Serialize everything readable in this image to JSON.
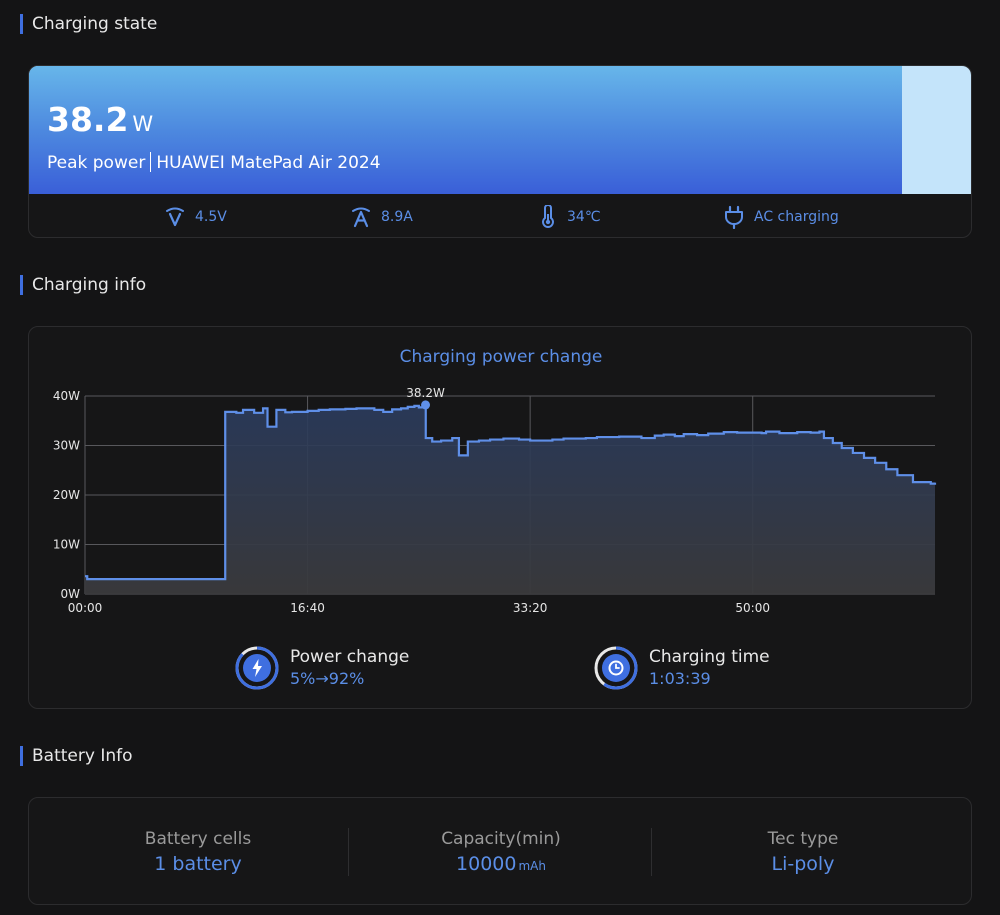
{
  "sections": {
    "charging_state": "Charging state",
    "charging_info": "Charging info",
    "battery_info": "Battery Info"
  },
  "peak": {
    "value": "38.2",
    "unit": "W",
    "label": "Peak power",
    "device": "HUAWEI MatePad Air 2024",
    "banner_fill_fraction": 0.925
  },
  "stats": {
    "voltage": "4.5V",
    "current": "8.9A",
    "temperature": "34℃",
    "mode": "AC charging"
  },
  "colors": {
    "accent": "#5b8ee6",
    "line": "#5f8fe8",
    "banner_light": "#c4e4fa"
  },
  "chart_data": {
    "type": "line",
    "title": "Charging power change",
    "x_tick_labels": [
      "00:00",
      "16:40",
      "33:20",
      "50:00"
    ],
    "x_ticks_seconds": [
      0,
      1000,
      2000,
      3000
    ],
    "y_tick_labels": [
      "0W",
      "10W",
      "20W",
      "30W",
      "40W"
    ],
    "y_ticks": [
      0,
      10,
      20,
      30,
      40
    ],
    "xlim": [
      0,
      3819
    ],
    "ylim": [
      0,
      40
    ],
    "grid": true,
    "peak_label": "38.2W",
    "peak_point": [
      1530,
      38.2
    ],
    "series": [
      {
        "x": [
          0,
          10,
          630,
          680,
          710,
          760,
          800,
          820,
          850,
          860,
          900,
          930,
          960,
          1000,
          1050,
          1100,
          1170,
          1220,
          1300,
          1340,
          1380,
          1420,
          1450,
          1480,
          1500,
          1530,
          1531,
          1560,
          1600,
          1650,
          1680,
          1720,
          1770,
          1820,
          1880,
          1950,
          2000,
          2100,
          2150,
          2250,
          2300,
          2400,
          2500,
          2560,
          2600,
          2650,
          2690,
          2750,
          2800,
          2870,
          2930,
          3040,
          3060,
          3120,
          3200,
          3260,
          3300,
          3320,
          3360,
          3400,
          3450,
          3500,
          3550,
          3600,
          3650,
          3720,
          3800,
          3819
        ],
        "y": [
          3.6,
          3,
          36.8,
          36.6,
          37.2,
          36.6,
          37.5,
          33.8,
          33.8,
          37.2,
          36.7,
          36.8,
          36.8,
          37.0,
          37.2,
          37.3,
          37.4,
          37.5,
          37.2,
          36.8,
          37.3,
          37.5,
          37.8,
          38.0,
          37.7,
          38.2,
          31.5,
          30.8,
          31.0,
          31.5,
          28.0,
          30.8,
          31.0,
          31.2,
          31.4,
          31.2,
          31.0,
          31.2,
          31.4,
          31.5,
          31.7,
          31.8,
          31.5,
          32.0,
          32.2,
          31.9,
          32.3,
          32.1,
          32.4,
          32.7,
          32.6,
          32.5,
          32.8,
          32.5,
          32.7,
          32.6,
          32.8,
          31.5,
          30.5,
          29.5,
          28.5,
          27.5,
          26.5,
          25.2,
          24.0,
          22.6,
          22.3,
          22.5
        ]
      }
    ]
  },
  "metrics": {
    "power_change_label": "Power change",
    "power_change_value": "5%→92%",
    "power_change_fraction": 0.87,
    "charging_time_label": "Charging time",
    "charging_time_value": "1:03:39",
    "charging_time_fraction": 0.6
  },
  "battery": {
    "cells_label": "Battery cells",
    "cells_value": "1 battery",
    "capacity_label": "Capacity(min)",
    "capacity_value": "10000",
    "capacity_unit": "mAh",
    "tec_label": "Tec type",
    "tec_value": "Li-poly"
  }
}
